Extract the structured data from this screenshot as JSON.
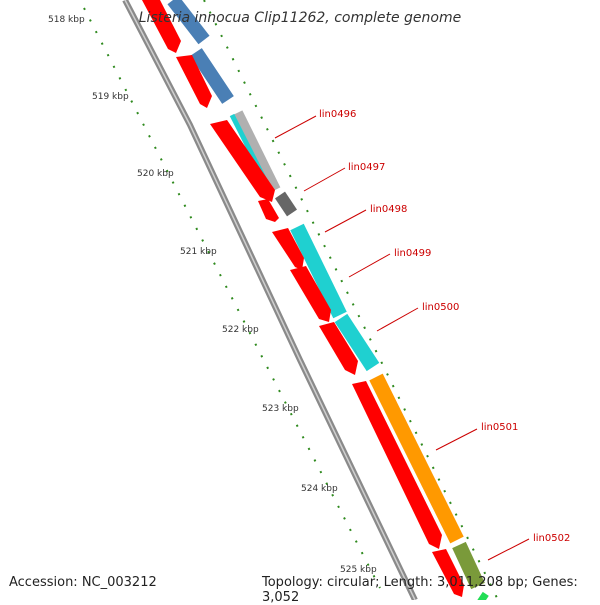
{
  "title": "Listeria innocua Clip11262, complete genome",
  "footer": {
    "accession": "Accession: NC_003212",
    "summary": "Topology: circular; Length: 3,011,208 bp; Genes: 3,052"
  },
  "colors": {
    "backbone": "#7f7f7f",
    "cds": "#ff0000",
    "tick": "#2f8a1e",
    "label": "#cc0000",
    "blue_track": "#4a7fb5",
    "cyan_track": "#1fd0d0",
    "orange_track": "#ff9900",
    "olive_track": "#7a9a3a",
    "gray_track": "#666666",
    "lightgray_track": "#b0b0b0",
    "green_track": "#22dd55"
  },
  "ticks": [
    {
      "label": "518 kbp"
    },
    {
      "label": "519 kbp"
    },
    {
      "label": "520 kbp"
    },
    {
      "label": "521 kbp"
    },
    {
      "label": "522 kbp"
    },
    {
      "label": "523 kbp"
    },
    {
      "label": "524 kbp"
    },
    {
      "label": "525 kbp"
    }
  ],
  "genes": [
    {
      "label": "lin0496"
    },
    {
      "label": "lin0497"
    },
    {
      "label": "lin0498"
    },
    {
      "label": "lin0499"
    },
    {
      "label": "lin0500"
    },
    {
      "label": "lin0501"
    },
    {
      "label": "lin0502"
    }
  ]
}
